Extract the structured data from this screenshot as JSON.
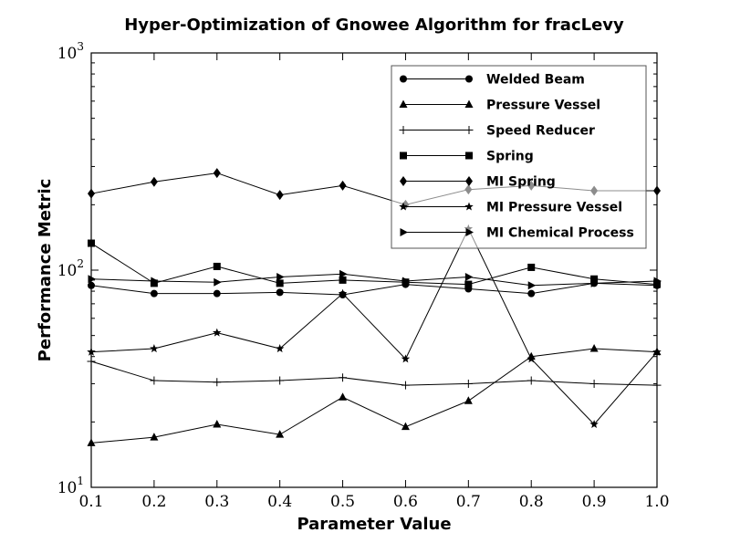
{
  "chart_data": {
    "type": "line",
    "title": "Hyper-Optimization of Gnowee Algorithm for fracLevy",
    "xlabel": "Parameter Value",
    "ylabel": "Performance Metric",
    "xlim": [
      0.1,
      1.0
    ],
    "ylim": [
      10,
      1000
    ],
    "yscale": "log",
    "grid": false,
    "legend_position": "top-right",
    "x": [
      0.1,
      0.2,
      0.3,
      0.4,
      0.5,
      0.6,
      0.7,
      0.8,
      0.9,
      1.0
    ],
    "x_ticks": [
      "0.1",
      "0.2",
      "0.3",
      "0.4",
      "0.5",
      "0.6",
      "0.7",
      "0.8",
      "0.9",
      "1.0"
    ],
    "y_ticks": [
      {
        "value": 10,
        "base": "10",
        "exp": "1"
      },
      {
        "value": 100,
        "base": "10",
        "exp": "2"
      },
      {
        "value": 1000,
        "base": "10",
        "exp": "3"
      }
    ],
    "series": [
      {
        "name": "Welded Beam",
        "marker": "circle",
        "values": [
          85,
          78,
          78,
          79,
          77,
          86,
          82,
          78,
          87,
          85
        ]
      },
      {
        "name": "Pressure Vessel",
        "marker": "triangle",
        "values": [
          16,
          17,
          19.5,
          17.5,
          26,
          19,
          25,
          40,
          43.5,
          42
        ]
      },
      {
        "name": "Speed Reducer",
        "marker": "plus",
        "values": [
          38,
          31,
          30.5,
          31,
          32,
          29.5,
          30,
          31,
          30,
          29.5
        ]
      },
      {
        "name": "Spring",
        "marker": "square",
        "values": [
          133,
          87,
          104,
          87,
          90,
          88,
          86,
          103,
          91,
          86
        ]
      },
      {
        "name": "MI Spring",
        "marker": "diamond",
        "values": [
          225,
          255,
          280,
          222,
          245,
          200,
          235,
          245,
          232,
          232
        ]
      },
      {
        "name": "MI Pressure Vessel",
        "marker": "star",
        "values": [
          42,
          43.5,
          51.5,
          43.5,
          78,
          39,
          155,
          39,
          19.5,
          42
        ]
      },
      {
        "name": "MI Chemical Process",
        "marker": "triangle-right",
        "values": [
          91,
          89,
          88,
          93,
          96,
          89,
          93,
          85,
          87,
          89
        ]
      }
    ]
  }
}
